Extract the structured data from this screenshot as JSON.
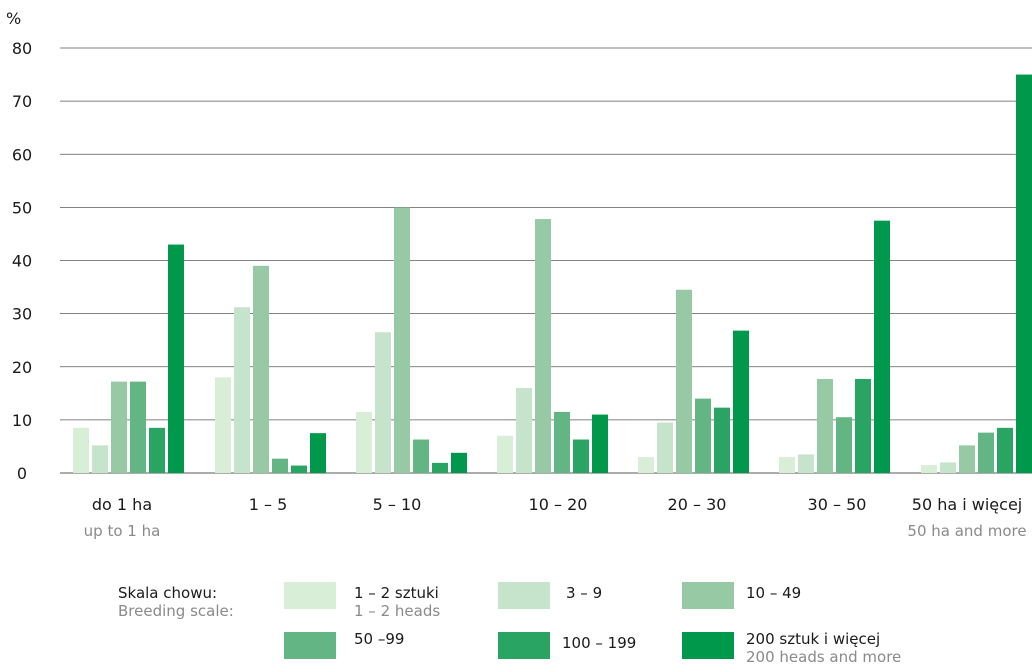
{
  "chart_data": {
    "type": "bar",
    "ylabel": "%",
    "ylim": [
      0,
      80
    ],
    "yticks": [
      0,
      10,
      20,
      30,
      40,
      50,
      60,
      70,
      80
    ],
    "grid": true,
    "categories": [
      {
        "label": "do 1 ha",
        "sublabel": "up to 1 ha"
      },
      {
        "label": "1 – 5",
        "sublabel": ""
      },
      {
        "label": "5 – 10",
        "sublabel": ""
      },
      {
        "label": "10 – 20",
        "sublabel": ""
      },
      {
        "label": "20 – 30",
        "sublabel": ""
      },
      {
        "label": "30 – 50",
        "sublabel": ""
      },
      {
        "label": "50 ha i więcej",
        "sublabel": "50 ha and more"
      }
    ],
    "series": [
      {
        "name": "1 – 2 sztuki",
        "name_en": "1 – 2 heads",
        "color": "#d9eed7",
        "values": [
          8.5,
          18,
          11.5,
          7,
          3,
          3,
          1.5
        ]
      },
      {
        "name": "3 – 9",
        "name_en": "",
        "color": "#c6e4cc",
        "values": [
          5.2,
          31.2,
          26.5,
          16,
          9.5,
          3.5,
          2
        ]
      },
      {
        "name": "10 – 49",
        "name_en": "",
        "color": "#97c9a4",
        "values": [
          17.2,
          39,
          50,
          47.8,
          34.5,
          17.7,
          5.2
        ]
      },
      {
        "name": "50 –99",
        "name_en": "",
        "color": "#64b584",
        "values": [
          17.2,
          2.7,
          6.3,
          11.5,
          14,
          10.5,
          7.6
        ]
      },
      {
        "name": "100 – 199",
        "name_en": "",
        "color": "#29a463",
        "values": [
          8.5,
          1.4,
          1.9,
          6.3,
          12.3,
          17.7,
          8.5
        ]
      },
      {
        "name": "200 sztuk i więcej",
        "name_en": "200 heads and more",
        "color": "#00994c",
        "values": [
          43,
          7.5,
          3.8,
          11,
          26.8,
          47.5,
          75
        ]
      }
    ],
    "legend": {
      "title": "Skala chowu:",
      "title_en": "Breeding scale:",
      "placement": "bottom"
    }
  }
}
